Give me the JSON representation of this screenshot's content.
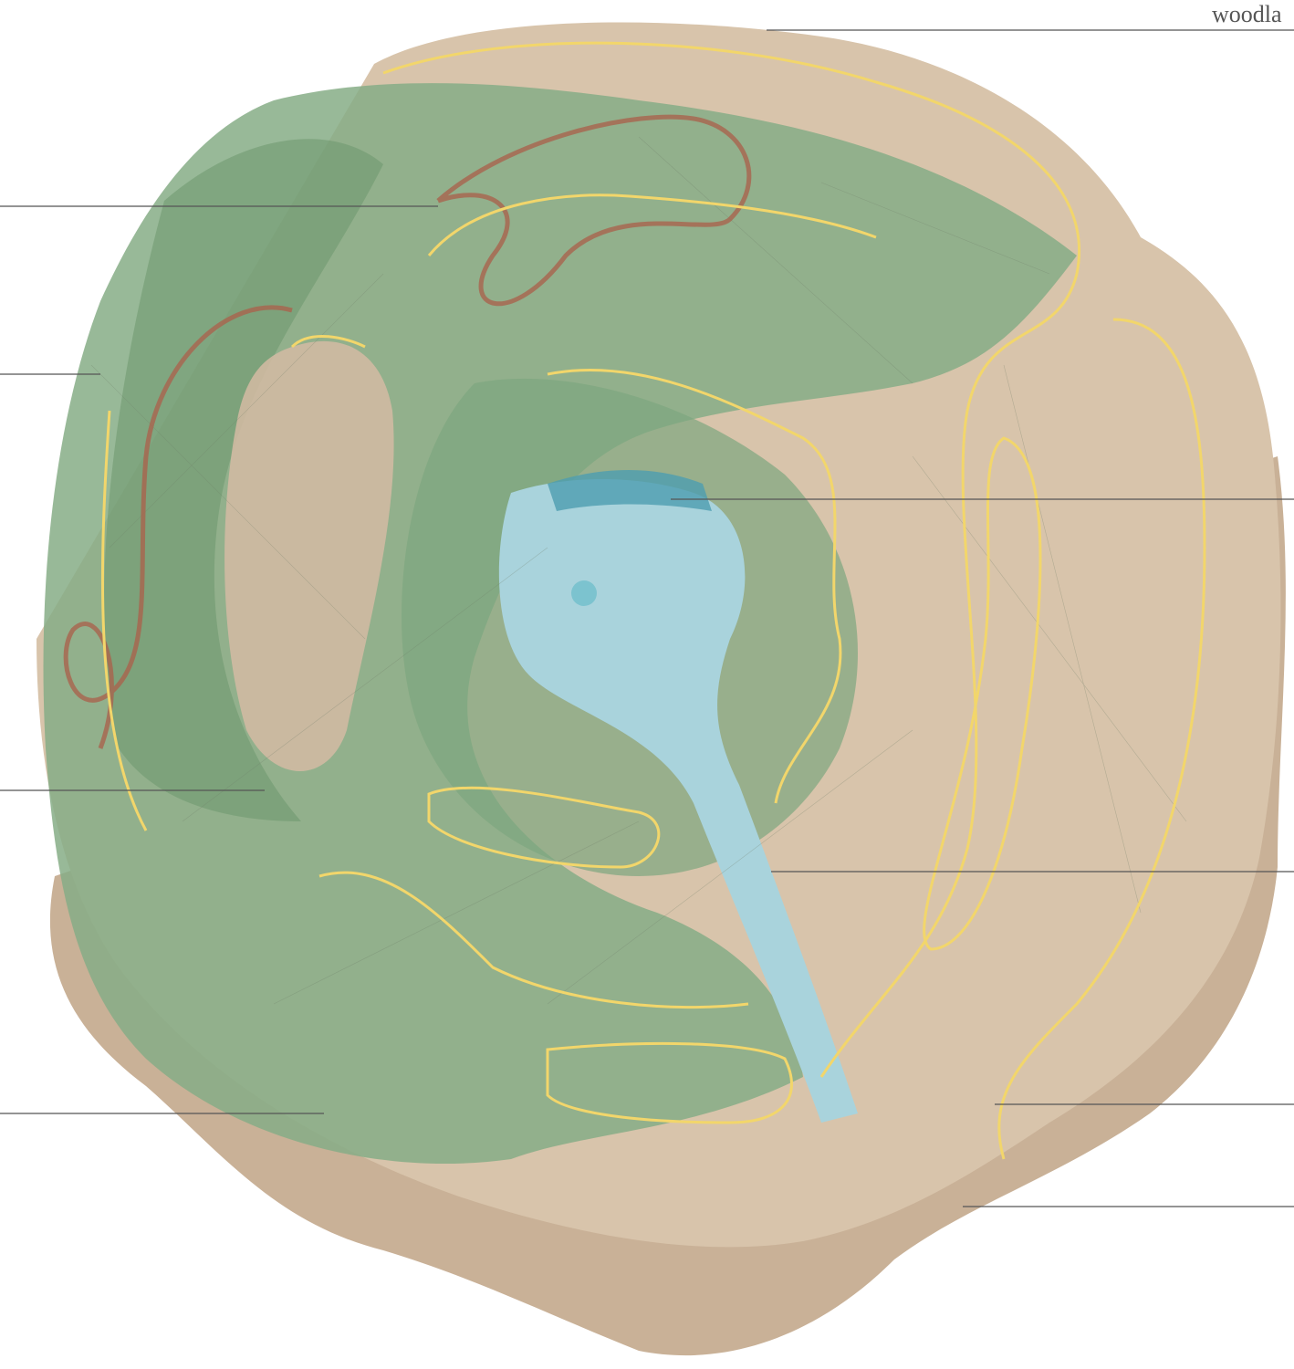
{
  "labels": [
    "woodla"
  ]
}
